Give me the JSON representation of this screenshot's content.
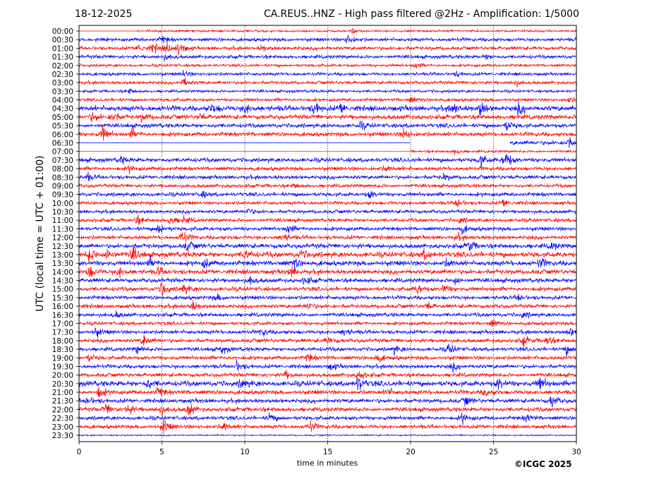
{
  "header": {
    "date": "18-12-2025",
    "title": "CA.REUS..HNZ - High pass filtered @2Hz - Amplification: 1/5000"
  },
  "footer": {
    "copyright": "©ICGC 2025"
  },
  "chart_data": {
    "type": "line",
    "title": "CA.REUS..HNZ - High pass filtered @2Hz - Amplification: 1/5000",
    "xlabel": "time in minutes",
    "ylabel": "UTC (local time = UTC + 01:00)",
    "xlim": [
      0,
      30
    ],
    "xticks": [
      "0",
      "5",
      "10",
      "15",
      "20",
      "25",
      "30"
    ],
    "grid": "vertical dotted at 5-minute intervals",
    "colors": [
      "#ff0000",
      "#0000ff"
    ],
    "rows": [
      "00:00",
      "00:30",
      "01:00",
      "01:30",
      "02:00",
      "02:30",
      "03:00",
      "03:30",
      "04:00",
      "04:30",
      "05:00",
      "05:30",
      "06:00",
      "06:30",
      "07:00",
      "07:30",
      "08:00",
      "08:30",
      "09:00",
      "09:30",
      "10:00",
      "10:30",
      "11:00",
      "11:30",
      "12:00",
      "12:30",
      "13:00",
      "13:30",
      "14:00",
      "14:30",
      "15:00",
      "15:30",
      "16:00",
      "16:30",
      "17:00",
      "17:30",
      "18:00",
      "18:30",
      "19:00",
      "19:30",
      "20:00",
      "20:30",
      "21:00",
      "21:30",
      "22:00",
      "22:30",
      "23:00",
      "23:30"
    ],
    "noise": [
      1.2,
      2,
      2,
      2,
      1.6,
      1.8,
      1.8,
      1.6,
      1.8,
      3,
      2.6,
      2.4,
      2.4,
      2.4,
      1.4,
      2.4,
      2.2,
      2.2,
      2,
      2.2,
      2,
      2,
      2,
      2.2,
      2.2,
      2.6,
      3,
      2.8,
      2.6,
      2.4,
      2.4,
      2.2,
      2.2,
      2.2,
      2,
      2.2,
      2.2,
      2.2,
      2.2,
      2.2,
      2.2,
      3,
      2.4,
      2.4,
      2.4,
      2.2,
      2.2,
      0.8
    ],
    "events": [
      [
        [
          16.5,
          3
        ]
      ],
      [
        [
          16.2,
          7
        ],
        [
          5,
          4
        ]
      ],
      [
        [
          3.6,
          6
        ],
        [
          4.5,
          7
        ],
        [
          5.3,
          5
        ],
        [
          6,
          9
        ],
        [
          11,
          3
        ]
      ],
      [
        [
          5.2,
          4
        ],
        [
          24.5,
          3
        ]
      ],
      [
        [
          20.3,
          3
        ]
      ],
      [
        [
          6.3,
          4
        ],
        [
          22.8,
          3
        ]
      ],
      [
        [
          6.3,
          7
        ],
        [
          26.3,
          4
        ]
      ],
      [
        [
          3,
          3
        ]
      ],
      [
        [
          20,
          3
        ],
        [
          29.5,
          4
        ]
      ],
      [
        [
          8,
          5
        ],
        [
          10,
          6
        ],
        [
          14.2,
          8
        ],
        [
          15.8,
          6
        ],
        [
          22.5,
          7
        ],
        [
          24.2,
          8
        ],
        [
          26.5,
          7
        ]
      ],
      [
        [
          0.8,
          6
        ],
        [
          2,
          7
        ],
        [
          3.8,
          5
        ],
        [
          7.3,
          4
        ]
      ],
      [
        [
          17,
          4
        ],
        [
          25.8,
          6
        ]
      ],
      [
        [
          1.4,
          9
        ],
        [
          3.2,
          6
        ],
        [
          19.6,
          7
        ]
      ],
      [
        [
          21.7,
          12
        ],
        [
          29.5,
          6
        ]
      ],
      [
        [
          22.7,
          4
        ]
      ],
      [
        [
          2.5,
          4
        ],
        [
          24.2,
          7
        ],
        [
          25.7,
          12
        ]
      ],
      [
        [
          3,
          4
        ],
        [
          18.5,
          4
        ]
      ],
      [
        [
          0.5,
          4
        ],
        [
          22,
          4
        ]
      ],
      [
        [
          13,
          3
        ]
      ],
      [
        [
          7.4,
          4
        ],
        [
          17.5,
          5
        ]
      ],
      [
        [
          22.8,
          6
        ],
        [
          25.6,
          5
        ]
      ],
      [
        [
          10.2,
          4
        ]
      ],
      [
        [
          3.5,
          5
        ],
        [
          5.5,
          6
        ],
        [
          6.3,
          5
        ],
        [
          23,
          4
        ]
      ],
      [
        [
          4.8,
          6
        ],
        [
          12.6,
          5
        ],
        [
          23.1,
          5
        ]
      ],
      [
        [
          6.2,
          9
        ],
        [
          12.3,
          6
        ],
        [
          22.8,
          4
        ]
      ],
      [
        [
          6.5,
          6
        ],
        [
          23.5,
          8
        ],
        [
          28.5,
          5
        ]
      ],
      [
        [
          0.6,
          9
        ],
        [
          1.7,
          8
        ],
        [
          3.2,
          9
        ],
        [
          10,
          6
        ],
        [
          13.4,
          5
        ],
        [
          20.8,
          5
        ]
      ],
      [
        [
          4.3,
          5
        ],
        [
          7.6,
          6
        ],
        [
          13,
          5
        ],
        [
          22.2,
          5
        ],
        [
          27.8,
          6
        ]
      ],
      [
        [
          0.6,
          8
        ],
        [
          2.4,
          7
        ],
        [
          4.8,
          5
        ],
        [
          12.8,
          6
        ]
      ],
      [
        [
          10.3,
          5
        ],
        [
          13.6,
          5
        ],
        [
          22.7,
          5
        ]
      ],
      [
        [
          5,
          9
        ],
        [
          6.3,
          7
        ],
        [
          20.4,
          6
        ],
        [
          22,
          6
        ]
      ],
      [
        [
          8.3,
          4
        ],
        [
          26.5,
          4
        ]
      ],
      [
        [
          6.8,
          7
        ],
        [
          13.8,
          5
        ],
        [
          21,
          5
        ]
      ],
      [
        [
          2.2,
          4
        ],
        [
          26.8,
          4
        ]
      ],
      [
        [
          24.9,
          4
        ]
      ],
      [
        [
          1,
          6
        ],
        [
          11,
          5
        ],
        [
          16,
          5
        ],
        [
          29.6,
          5
        ]
      ],
      [
        [
          3.9,
          7
        ],
        [
          15,
          5
        ],
        [
          26.8,
          6
        ],
        [
          28.2,
          6
        ]
      ],
      [
        [
          3.5,
          5
        ],
        [
          8.6,
          5
        ],
        [
          19,
          5
        ],
        [
          22.3,
          6
        ],
        [
          29.4,
          6
        ]
      ],
      [
        [
          0.6,
          4
        ],
        [
          13.8,
          5
        ],
        [
          18,
          5
        ]
      ],
      [
        [
          9.5,
          6
        ],
        [
          15.2,
          4
        ],
        [
          22.5,
          5
        ]
      ],
      [
        [
          12.4,
          5
        ],
        [
          16.9,
          6
        ]
      ],
      [
        [
          4.1,
          6
        ],
        [
          9.8,
          7
        ],
        [
          16.8,
          9
        ],
        [
          25.3,
          7
        ],
        [
          27.8,
          8
        ]
      ],
      [
        [
          1.2,
          8
        ],
        [
          4.8,
          6
        ],
        [
          18.6,
          5
        ],
        [
          24.5,
          5
        ]
      ],
      [
        [
          0.5,
          5
        ],
        [
          23.3,
          5
        ],
        [
          28.5,
          8
        ]
      ],
      [
        [
          1.6,
          6
        ],
        [
          2.9,
          7
        ],
        [
          4.9,
          6
        ],
        [
          6.6,
          8
        ]
      ],
      [
        [
          11.5,
          6
        ],
        [
          23.1,
          6
        ],
        [
          27,
          5
        ]
      ],
      [
        [
          5.1,
          8
        ],
        [
          8.7,
          6
        ],
        [
          13.9,
          7
        ]
      ],
      []
    ],
    "segments": {
      "13": {
        "flat_until": 20,
        "gap": [
          20,
          26
        ]
      },
      "14": {
        "flat_until": 20
      },
      "0": {
        "flat_until": 3.5
      }
    }
  }
}
